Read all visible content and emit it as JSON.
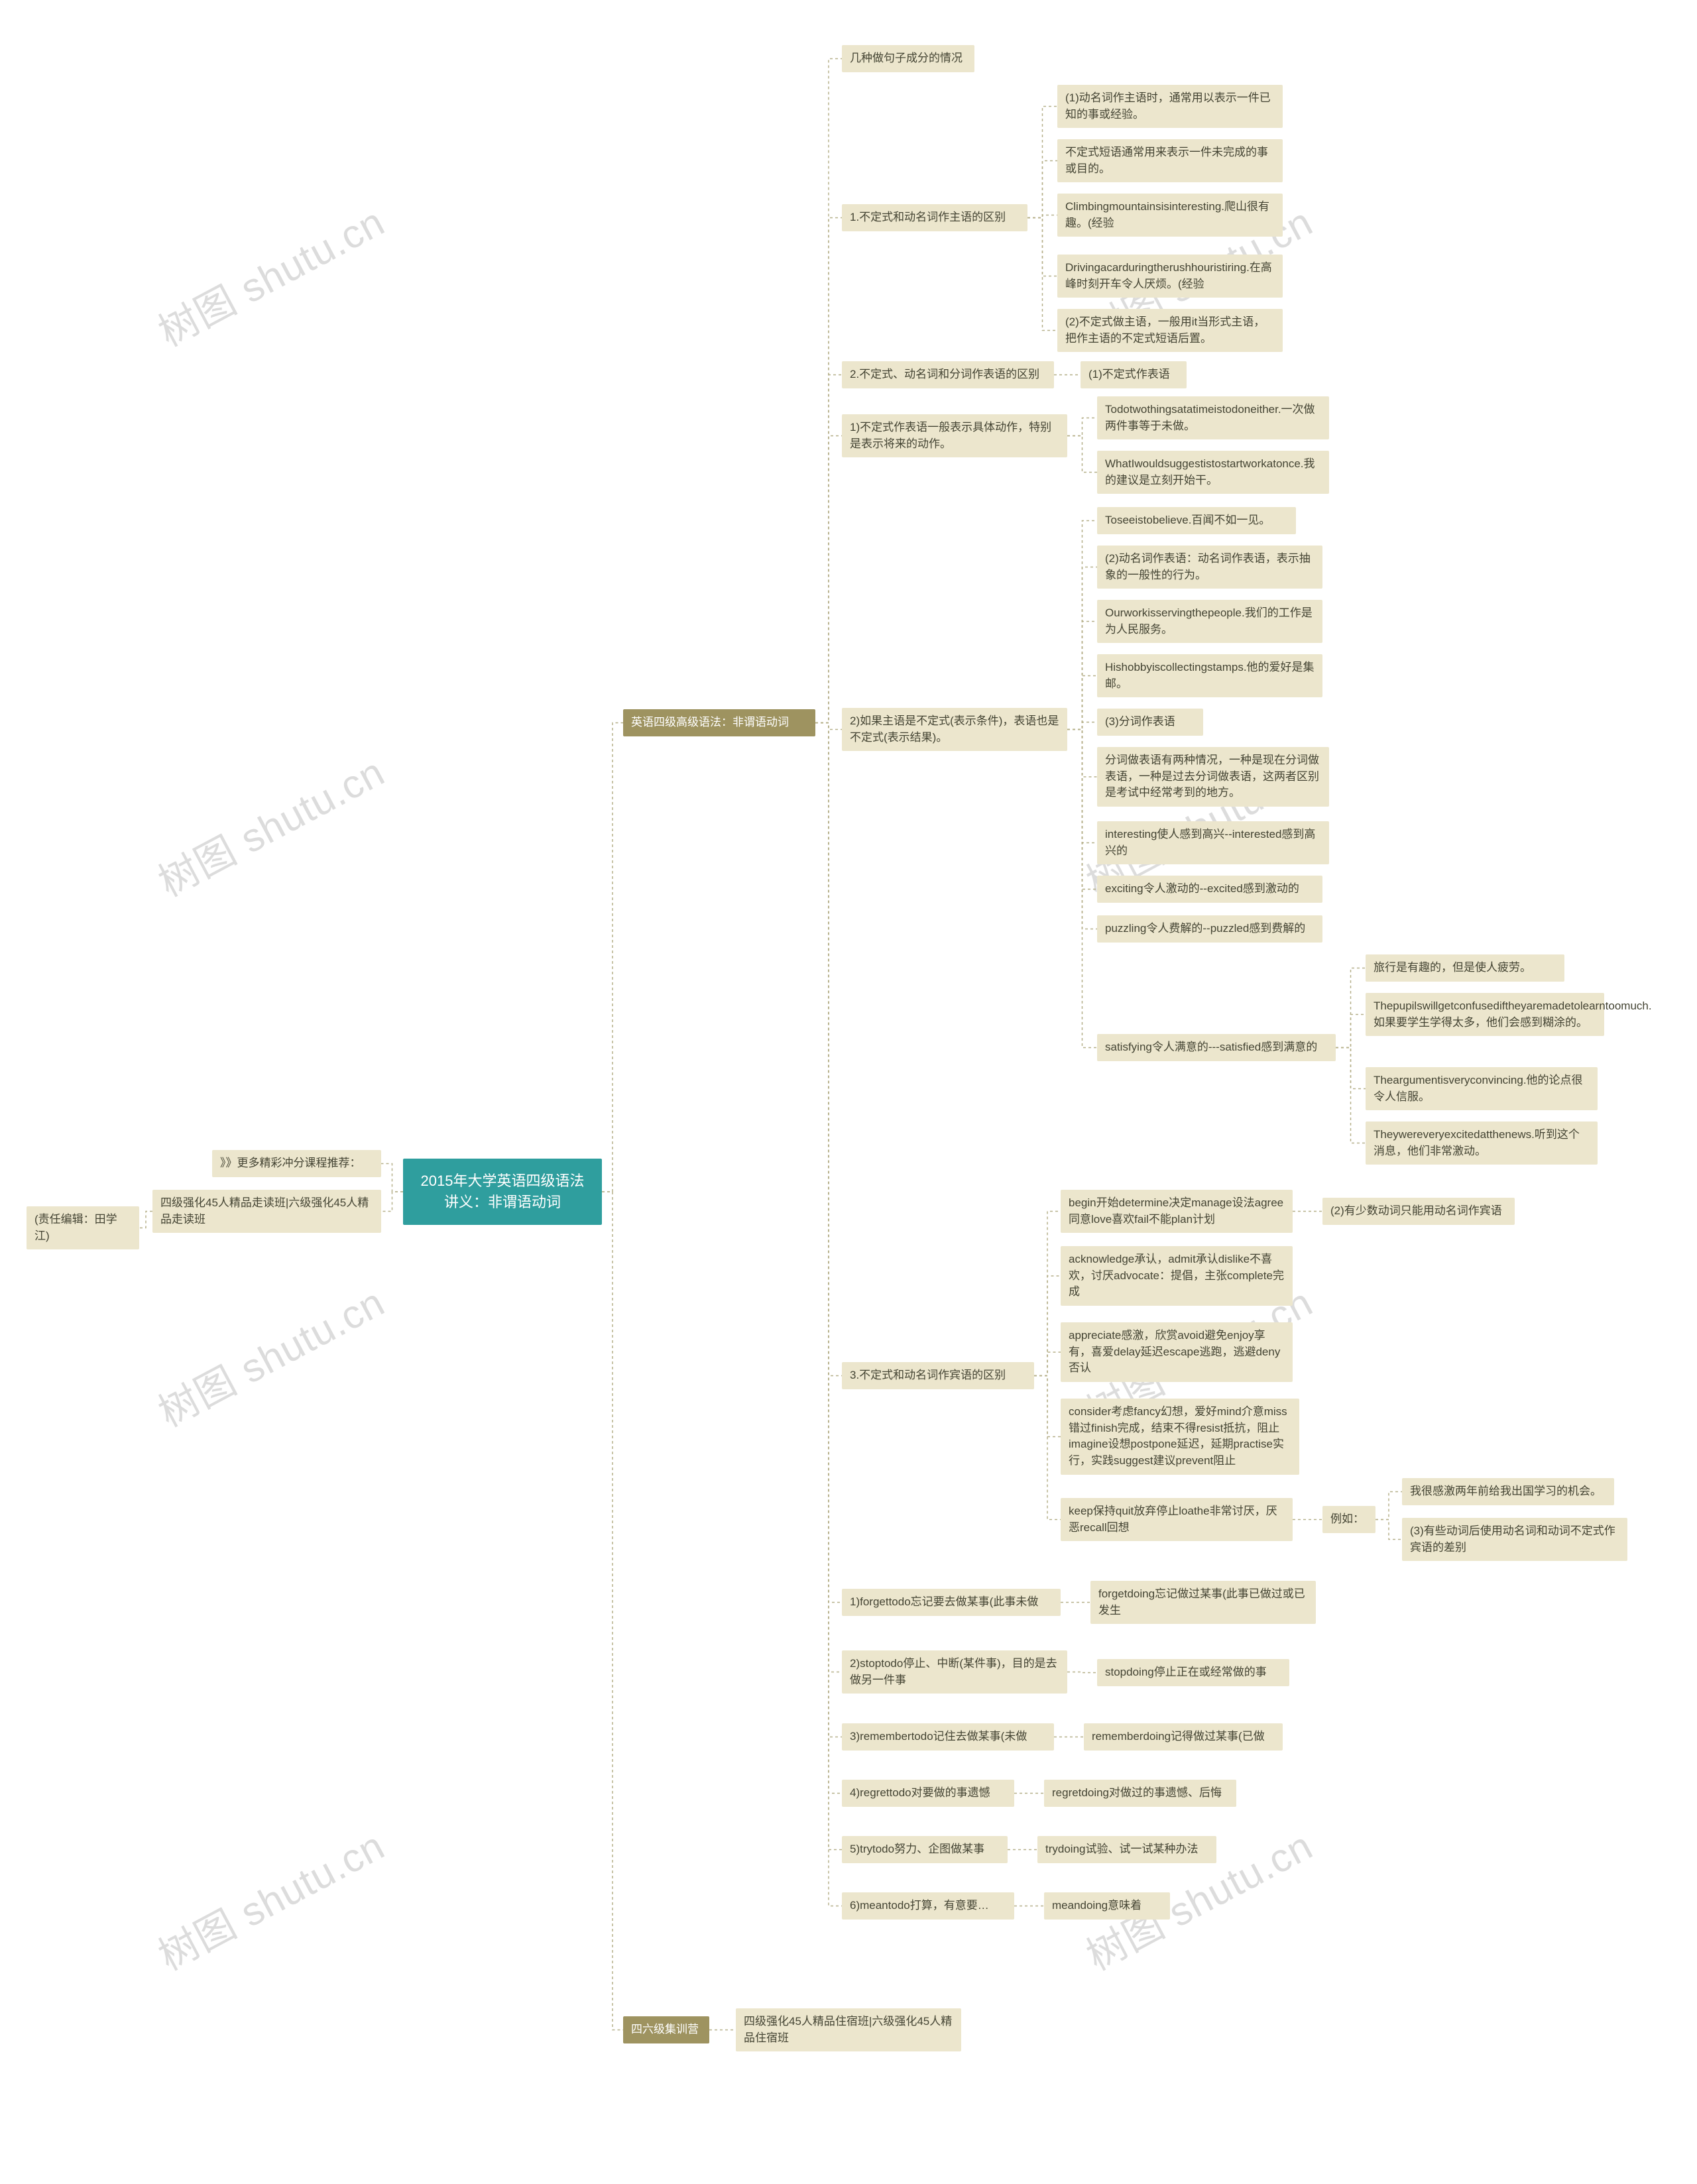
{
  "watermark_text": "树图 shutu.cn",
  "colors": {
    "root_bg": "#2f9e9e",
    "root_text": "#ffffff",
    "olive_dark_bg": "#9e9360",
    "olive_dark_text": "#ffffff",
    "olive_light_bg": "#ece6cd",
    "olive_light_text": "#444433",
    "line": "#b6b08a",
    "watermark": "#dcdcdc",
    "page_bg": "#ffffff"
  },
  "root": {
    "text": "2015年大学英语四级语法\n讲义：非谓语动词"
  },
  "left": {
    "l1": "》》更多精彩冲分课程推荐：",
    "l2": "四级强化45人精品走读班|六级强化45人精品走读班",
    "l3": "(责任编辑：田学江)"
  },
  "right": {
    "main1": "英语四级高级语法：非谓语动词",
    "main2": "四六级集训营",
    "main2_child": "四级强化45人精品住宿班|六级强化45人精品住宿班",
    "m1a": "几种做句子成分的情况",
    "m1b": "1.不定式和动名词作主语的区别",
    "m1b_c1": "(1)动名词作主语时，通常用以表示一件已知的事或经验。",
    "m1b_c2": "不定式短语通常用来表示一件未完成的事或目的。",
    "m1b_c3": "Climbingmountainsisinteresting.爬山很有趣。(经验",
    "m1b_c4": "Drivingacarduringtherushhouristiring.在高峰时刻开车令人厌烦。(经验",
    "m1b_c5": "(2)不定式做主语，一般用it当形式主语，把作主语的不定式短语后置。",
    "m1c": "2.不定式、动名词和分词作表语的区别",
    "m1c_r": "(1)不定式作表语",
    "m1d": "1)不定式作表语一般表示具体动作，特别是表示将来的动作。",
    "m1d_c1": "Todotwothingsatatimeistodoneither.一次做两件事等于未做。",
    "m1d_c2": "WhatIwouldsuggestistostartworkatonce.我的建议是立刻开始干。",
    "m1e": "2)如果主语是不定式(表示条件)，表语也是不定式(表示结果)。",
    "m1e_c1": "Toseeistobelieve.百闻不如一见。",
    "m1e_c2": "(2)动名词作表语：动名词作表语，表示抽象的一般性的行为。",
    "m1e_c3": "Ourworkisservingthepeople.我们的工作是为人民服务。",
    "m1e_c4": "Hishobbyiscollectingstamps.他的爱好是集邮。",
    "m1e_c5": "(3)分词作表语",
    "m1e_c6": "分词做表语有两种情况，一种是现在分词做表语，一种是过去分词做表语，这两者区别是考试中经常考到的地方。",
    "m1e_c7": "interesting使人感到高兴--interested感到高兴的",
    "m1e_c8": "exciting令人激动的--excited感到激动的",
    "m1e_c9": "puzzling令人费解的--puzzled感到费解的",
    "m1e_c10": "satisfying令人满意的---satisfied感到满意的",
    "m1e_c10_s1": "旅行是有趣的，但是使人疲劳。",
    "m1e_c10_s2": "Thepupilswillgetconfusediftheyaremadetolearntoomuch.如果要学生学得太多，他们会感到糊涂的。",
    "m1e_c10_s3": "Theargumentisveryconvincing.他的论点很令人信服。",
    "m1e_c10_s4": "Theywereveryexcitedatthenews.听到这个消息，他们非常激动。",
    "m1f": "3.不定式和动名词作宾语的区别",
    "m1f_c1": "begin开始determine决定manage设法agree同意love喜欢fail不能plan计划",
    "m1f_c1_r": "(2)有少数动词只能用动名词作宾语",
    "m1f_c2": "acknowledge承认，admit承认dislike不喜欢，讨厌advocate：提倡，主张complete完成",
    "m1f_c3": "appreciate感激，欣赏avoid避免enjoy享有，喜爱delay延迟escape逃跑，逃避deny否认",
    "m1f_c4": "consider考虑fancy幻想，爱好mind介意miss错过finish完成，结束不得resist抵抗，阻止imagine设想postpone延迟，延期practise实行，实践suggest建议prevent阻止",
    "m1f_c5": "keep保持quit放弃停止loathe非常讨厌，厌恶recall回想",
    "m1f_c5_r": "例如：",
    "m1f_c5_r1": "我很感激两年前给我出国学习的机会。",
    "m1f_c5_r2": "(3)有些动词后使用动名词和动词不定式作宾语的差别",
    "m1g1": "1)forgettodo忘记要去做某事(此事未做",
    "m1g1_r": "forgetdoing忘记做过某事(此事已做过或已发生",
    "m1g2": "2)stoptodo停止、中断(某件事)，目的是去做另一件事",
    "m1g2_r": "stopdoing停止正在或经常做的事",
    "m1g3": "3)remembertodo记住去做某事(未做",
    "m1g3_r": "rememberdoing记得做过某事(已做",
    "m1g4": "4)regrettodo对要做的事遗憾",
    "m1g4_r": "regretdoing对做过的事遗憾、后悔",
    "m1g5": "5)trytodo努力、企图做某事",
    "m1g5_r": "trydoing试验、试一试某种办法",
    "m1g6": "6)meantodo打算，有意要…",
    "m1g6_r": "meandoing意味着"
  }
}
